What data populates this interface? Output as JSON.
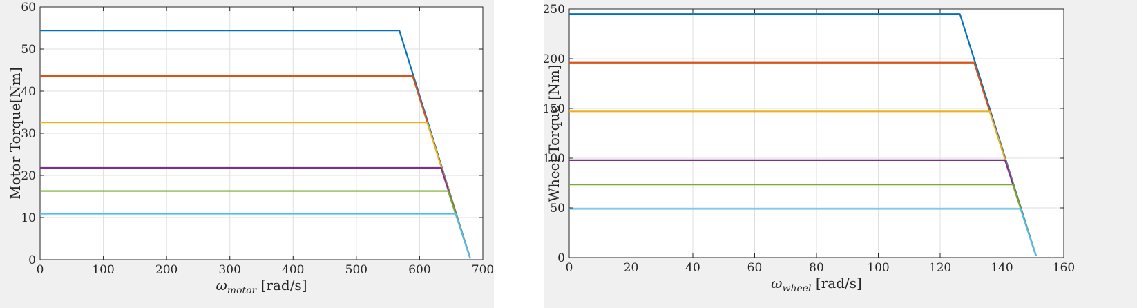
{
  "chart_data": [
    {
      "type": "line",
      "title": "",
      "xlabel": {
        "symbol": "ω",
        "subscript": "motor",
        "unit": " [rad/s]"
      },
      "ylabel": "Motor Torque[Nm]",
      "xlim": [
        0,
        700
      ],
      "ylim": [
        0,
        60
      ],
      "xticks": [
        "0",
        "100",
        "200",
        "300",
        "400",
        "500",
        "600",
        "700"
      ],
      "yticks": [
        "0",
        "10",
        "20",
        "30",
        "40",
        "50",
        "60"
      ],
      "grid": true,
      "series": [
        {
          "color": "#0072BD",
          "x": [
            0,
            566,
            568,
            680
          ],
          "y": [
            54.4,
            54.4,
            54.4,
            0.3
          ]
        },
        {
          "color": "#D95319",
          "x": [
            0,
            589,
            680
          ],
          "y": [
            43.6,
            43.6,
            0.3
          ]
        },
        {
          "color": "#EDB120",
          "x": [
            0,
            612,
            680
          ],
          "y": [
            32.6,
            32.6,
            0.3
          ]
        },
        {
          "color": "#7E2F8E",
          "x": [
            0,
            634,
            680
          ],
          "y": [
            21.8,
            21.8,
            0.3
          ]
        },
        {
          "color": "#77AC30",
          "x": [
            0,
            645,
            680
          ],
          "y": [
            16.3,
            16.3,
            0.3
          ]
        },
        {
          "color": "#4DBEEE",
          "x": [
            0,
            657,
            680
          ],
          "y": [
            10.9,
            10.9,
            0.3
          ]
        }
      ]
    },
    {
      "type": "line",
      "title": "",
      "xlabel": {
        "symbol": "ω",
        "subscript": "wheel",
        "unit": " [rad/s]"
      },
      "ylabel": "Wheel Torque [Nm]",
      "xlim": [
        0,
        160
      ],
      "ylim": [
        0,
        250
      ],
      "xticks": [
        "0",
        "20",
        "40",
        "60",
        "80",
        "100",
        "120",
        "140",
        "160"
      ],
      "yticks": [
        "0",
        "50",
        "100",
        "150",
        "200",
        "250"
      ],
      "grid": true,
      "series": [
        {
          "color": "#0072BD",
          "x": [
            0,
            126,
            126.4,
            151
          ],
          "y": [
            245,
            245,
            245,
            2
          ]
        },
        {
          "color": "#D95319",
          "x": [
            0,
            131,
            151
          ],
          "y": [
            196,
            196,
            2
          ]
        },
        {
          "color": "#EDB120",
          "x": [
            0,
            136,
            151
          ],
          "y": [
            147,
            147,
            2
          ]
        },
        {
          "color": "#7E2F8E",
          "x": [
            0,
            141,
            151
          ],
          "y": [
            98,
            98,
            2
          ]
        },
        {
          "color": "#77AC30",
          "x": [
            0,
            143.5,
            151
          ],
          "y": [
            73.5,
            73.5,
            2
          ]
        },
        {
          "color": "#4DBEEE",
          "x": [
            0,
            146,
            151
          ],
          "y": [
            49,
            49,
            2
          ]
        }
      ]
    }
  ]
}
